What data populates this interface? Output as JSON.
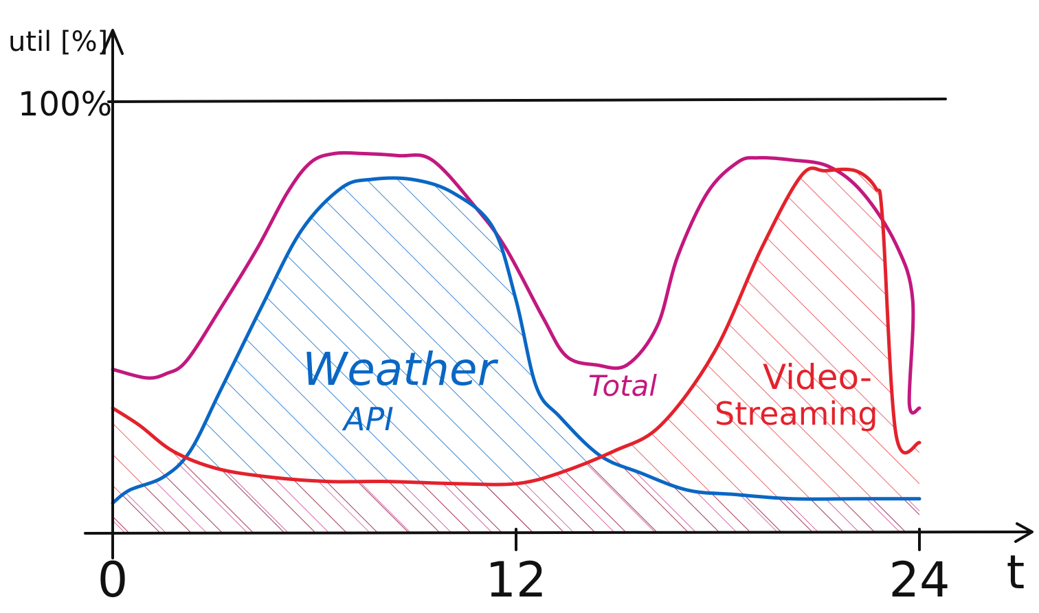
{
  "chart_data": {
    "type": "area",
    "title": "",
    "ylabel": "util [%]",
    "xlabel": "t",
    "reference_line": {
      "label": "100%",
      "value": 100
    },
    "x_ticks": [
      {
        "value": 0,
        "label": "0"
      },
      {
        "value": 12,
        "label": "12"
      },
      {
        "value": 24,
        "label": "24"
      }
    ],
    "xlim": [
      0,
      24
    ],
    "ylim": [
      0,
      100
    ],
    "series": [
      {
        "key": "total",
        "name": "Total",
        "color": "#c2187f",
        "hatched": false,
        "x": [
          0,
          1.0,
          1.6,
          2.2,
          3.2,
          4.3,
          5.2,
          5.9,
          6.6,
          7.4,
          8.5,
          9.5,
          10.8,
          11.7,
          12.8,
          13.5,
          14.4,
          15.3,
          16.2,
          16.8,
          17.7,
          18.6,
          19.2,
          20.2,
          21.3,
          22.3,
          23.3,
          23.8,
          23.7,
          24.0
        ],
        "y": [
          38,
          36,
          37,
          40,
          52,
          66,
          79,
          86,
          88,
          88,
          87.5,
          86.5,
          75.5,
          66,
          50,
          41,
          39,
          39,
          48,
          64,
          79,
          86,
          87,
          86.5,
          85,
          79,
          67,
          54,
          30,
          29
        ]
      },
      {
        "key": "weather",
        "name": "Weather API",
        "color": "#0a67c4",
        "hatched": true,
        "x": [
          0,
          0.5,
          1.5,
          2.3,
          3.2,
          4.4,
          5.6,
          6.8,
          7.7,
          8.9,
          10.1,
          11.3,
          12.0,
          12.6,
          13.3,
          14.5,
          15.7,
          17.1,
          18.5,
          20.2,
          22.1,
          24.0
        ],
        "y": [
          7,
          10,
          13,
          19,
          33,
          52,
          70,
          80,
          82,
          82,
          79,
          71,
          54,
          34,
          27,
          18,
          14,
          10,
          9,
          8,
          8,
          8
        ]
      },
      {
        "key": "video",
        "name": "Video-Streaming",
        "color": "#e3222c",
        "hatched": true,
        "x": [
          0,
          0.8,
          1.8,
          3.1,
          4.7,
          6.4,
          8.2,
          10.2,
          12.0,
          13.3,
          14.9,
          16.3,
          17.9,
          19.3,
          20.5,
          21.2,
          22.1,
          22.7,
          22.9,
          23.3,
          24.0
        ],
        "y": [
          29,
          25,
          19,
          15,
          13,
          12,
          12,
          11.5,
          11.5,
          14,
          19,
          25,
          42,
          66,
          83,
          84,
          84,
          80,
          73,
          23,
          21
        ]
      }
    ],
    "annotations": [
      {
        "key": "weather_1",
        "text": "Weather",
        "series": "weather"
      },
      {
        "key": "weather_2",
        "text": "API",
        "series": "weather"
      },
      {
        "key": "total",
        "text": "Total",
        "series": "total"
      },
      {
        "key": "video_1",
        "text": "Video-",
        "series": "video"
      },
      {
        "key": "video_2",
        "text": "Streaming",
        "series": "video"
      }
    ],
    "grid": false
  }
}
